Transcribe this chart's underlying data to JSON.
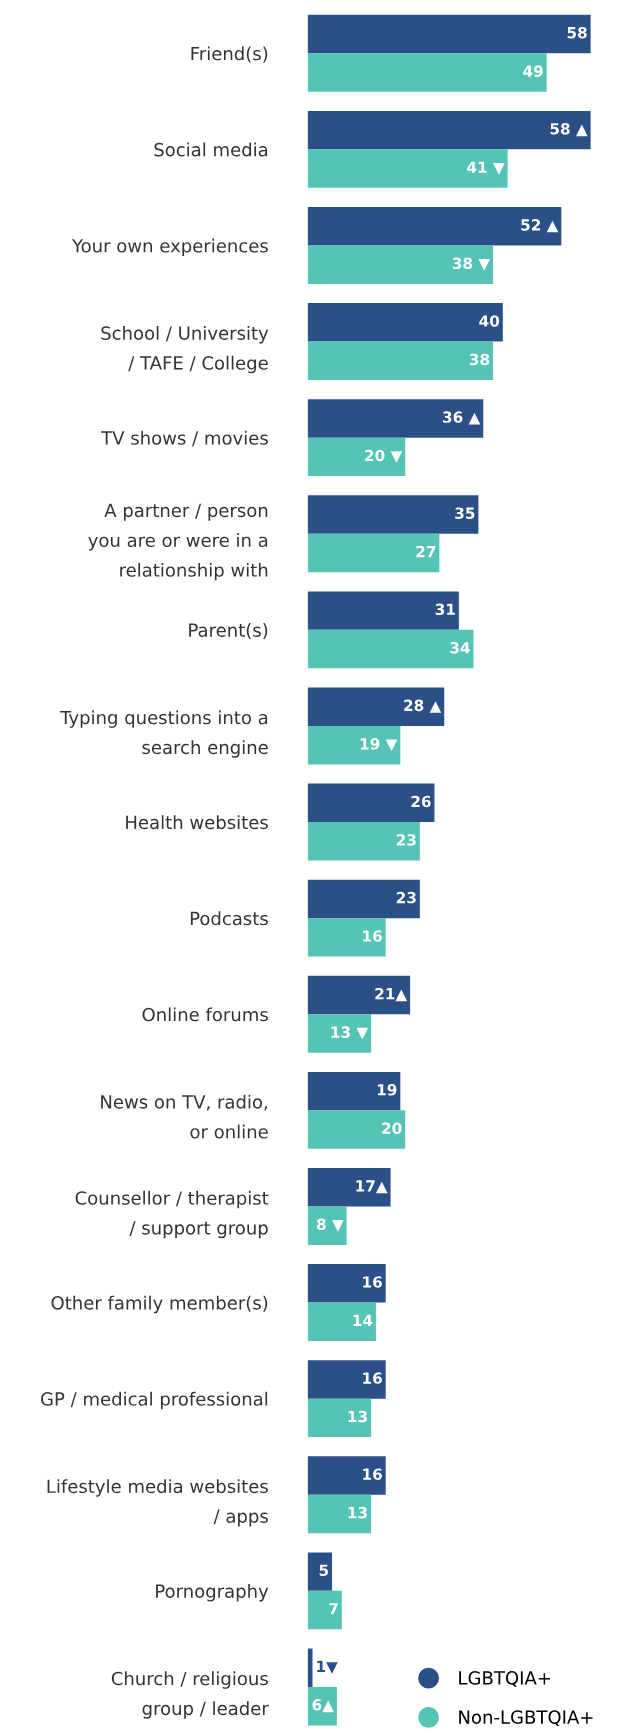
{
  "chart_data": {
    "type": "bar",
    "orientation": "horizontal",
    "categories": [
      "Friend(s)",
      "Social media",
      "Your own experiences",
      "School / University\n/ TAFE / College",
      "TV shows / movies",
      "A partner / person\nyou are or were in a\nrelationship with",
      "Parent(s)",
      "Typing questions into a\nsearch engine",
      "Health websites",
      "Podcasts",
      "Online forums",
      "News on TV, radio,\nor online",
      "Counsellor / therapist\n/ support group",
      "Other family member(s)",
      "GP / medical professional",
      "Lifestyle media websites\n/ apps",
      "Pornography",
      "Church / religious\ngroup / leader"
    ],
    "series": [
      {
        "name": "LGBTQIA+",
        "color": "#2b5088",
        "values": [
          58,
          58,
          52,
          40,
          36,
          35,
          31,
          28,
          26,
          23,
          21,
          19,
          17,
          16,
          16,
          16,
          5,
          1
        ],
        "value_labels": [
          "58",
          "58 ▲",
          "52 ▲",
          "40",
          "36 ▲",
          "35",
          "31",
          "28 ▲",
          "26",
          "23",
          "21▲",
          "19",
          "17▲",
          "16",
          "16",
          "16",
          "5",
          "1▼"
        ]
      },
      {
        "name": "Non-LGBTQIA+",
        "color": "#55c4b4",
        "values": [
          49,
          41,
          38,
          38,
          20,
          27,
          34,
          19,
          23,
          16,
          13,
          20,
          8,
          14,
          13,
          13,
          7,
          6
        ],
        "value_labels": [
          "49",
          "41 ▼",
          "38 ▼",
          "38",
          "20 ▼",
          "27",
          "34",
          "19 ▼",
          "23",
          "16",
          "13 ▼",
          "20",
          "8 ▼",
          "14",
          "13",
          "13",
          "7",
          "6▲"
        ]
      }
    ],
    "legend": "bottom right"
  }
}
